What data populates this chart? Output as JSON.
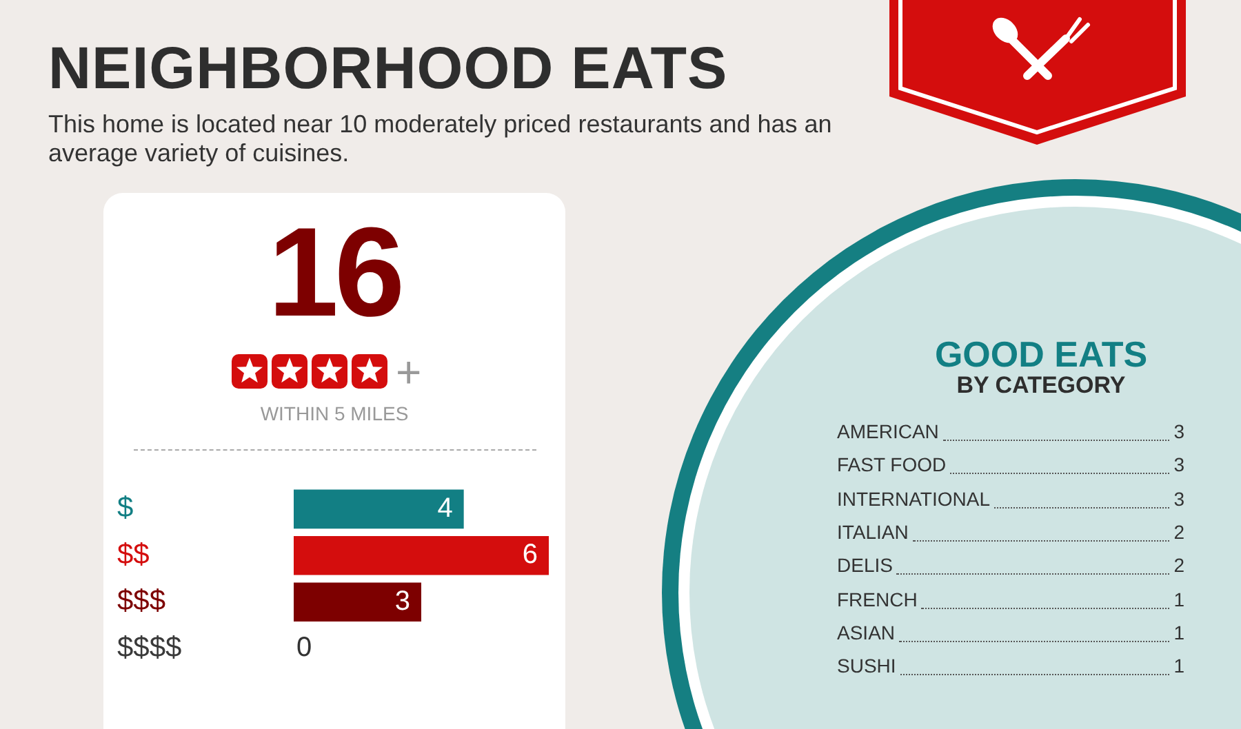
{
  "chart_data": [
    {
      "type": "bar",
      "title": "NEIGHBORHOOD EATS",
      "subtitle": "This home is located near 10 moderately priced restaurants and has an average variety of cuisines.",
      "orientation": "horizontal",
      "categories": [
        "$",
        "$$",
        "$$$",
        "$$$$"
      ],
      "values": [
        4,
        6,
        3,
        0
      ],
      "colors": [
        "#127f84",
        "#d40d0d",
        "#7d0000",
        "#3a3a3a"
      ],
      "data_labels": true,
      "tick_labels": "y",
      "annotations": [
        "16",
        "+",
        "WITHIN 5 MILES"
      ]
    },
    {
      "type": "other",
      "title": "GOOD EATS",
      "subtitle": "BY CATEGORY",
      "categories": [
        "AMERICAN",
        "FAST FOOD",
        "INTERNATIONAL",
        "ITALIAN",
        "DELIS",
        "FRENCH",
        "ASIAN",
        "SUSHI"
      ],
      "values": [
        3,
        3,
        3,
        2,
        2,
        1,
        1,
        1
      ],
      "data_labels": true
    }
  ]
}
